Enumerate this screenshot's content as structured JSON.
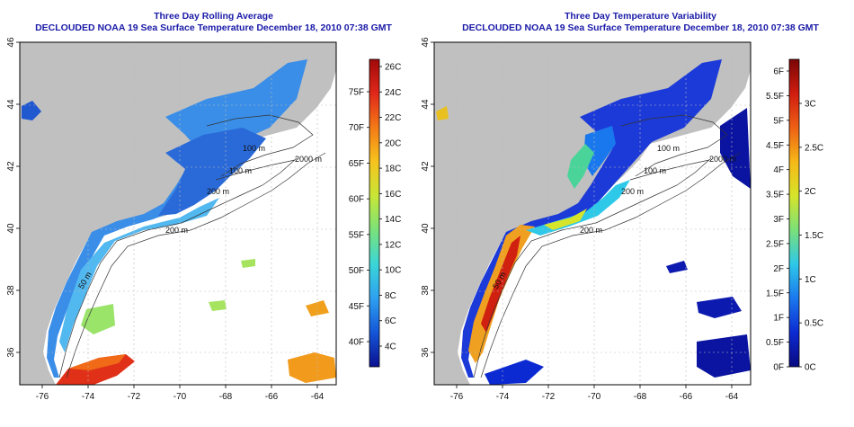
{
  "panels": [
    {
      "title1": "Three Day Rolling Average",
      "title2": "DECLOUDED NOAA 19 Sea Surface Temperature December 18, 2010 07:38 GMT",
      "lon_ticks": [
        "-76",
        "-74",
        "-72",
        "-70",
        "-68",
        "-66",
        "-64"
      ],
      "lat_ticks": [
        "36",
        "38",
        "40",
        "42",
        "44",
        "46"
      ],
      "depth_labels": [
        "100 m",
        "100 m",
        "2000 m",
        "200 m",
        "200 m",
        "50 m"
      ],
      "colorbar": {
        "gradient_colors": [
          "#0a1090",
          "#1456d8",
          "#2ea0f0",
          "#3ad6d8",
          "#7ae27a",
          "#c8e636",
          "#f6c41e",
          "#f47a16",
          "#e0281a",
          "#a00a0a"
        ],
        "right_labels": [
          "26C",
          "24C",
          "22C",
          "20C",
          "18C",
          "16C",
          "14C",
          "12C",
          "10C",
          "8C",
          "6C",
          "4C"
        ],
        "left_labels": [
          "75F",
          "70F",
          "65F",
          "60F",
          "55F",
          "50F",
          "45F",
          "40F"
        ]
      }
    },
    {
      "title1": "Three Day Temperature Variability",
      "title2": "DECLOUDED NOAA 19 Sea Surface Temperature December 18, 2010 07:38 GMT",
      "lon_ticks": [
        "-76",
        "-74",
        "-72",
        "-70",
        "-68",
        "-66",
        "-64"
      ],
      "lat_ticks": [
        "36",
        "38",
        "40",
        "42",
        "44",
        "46"
      ],
      "depth_labels": [
        "100 m",
        "100 m",
        "2000 m",
        "200 m",
        "200 m",
        "50 m"
      ],
      "colorbar": {
        "gradient_colors": [
          "#0a0a80",
          "#0c2ad2",
          "#1a78ee",
          "#2ec8e8",
          "#7ae07a",
          "#d6e42a",
          "#f6b818",
          "#ee6014",
          "#d01c10",
          "#7a0606"
        ],
        "left_labels": [
          "6F",
          "5.5F",
          "5F",
          "4.5F",
          "4F",
          "3.5F",
          "3F",
          "2.5F",
          "2F",
          "1.5F",
          "1F",
          "0.5F",
          "0F"
        ],
        "right_labels": [
          "3C",
          "2.5C",
          "2C",
          "1.5C",
          "1C",
          "0.5C",
          "0C"
        ]
      }
    }
  ],
  "colors": {
    "title": "#1a1aa8",
    "land": "#c0c0c0",
    "ocean_nodata": "#ffffff",
    "contour": "#333333",
    "grid": "#bbbbbb"
  }
}
